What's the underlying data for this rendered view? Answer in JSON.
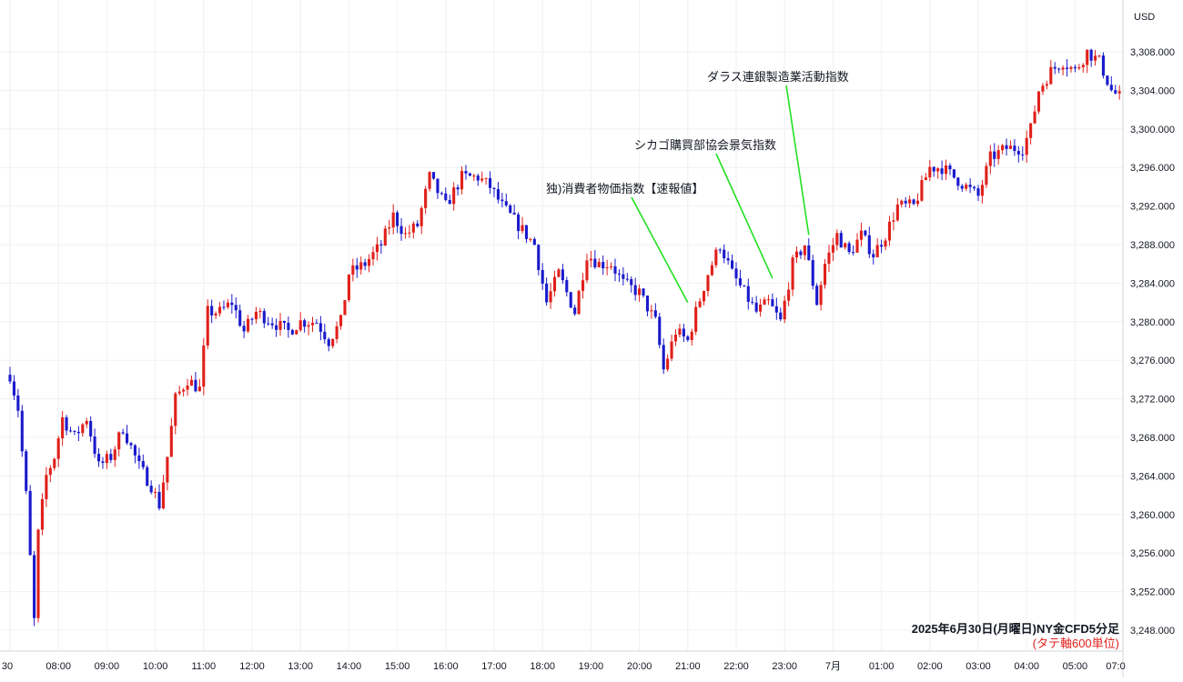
{
  "currency_label": "USD",
  "chart_data": {
    "type": "candlestick",
    "title": "",
    "xlabel": "",
    "ylabel": "",
    "ylim": [
      3246,
      3312
    ],
    "grid": true,
    "y_ticks": [
      3248,
      3252,
      3256,
      3260,
      3264,
      3268,
      3272,
      3276,
      3280,
      3284,
      3288,
      3292,
      3296,
      3300,
      3304,
      3308
    ],
    "y_tick_labels": [
      "3,248.000",
      "3,252.000",
      "3,256.000",
      "3,260.000",
      "3,264.000",
      "3,268.000",
      "3,272.000",
      "3,276.000",
      "3,280.000",
      "3,284.000",
      "3,288.000",
      "3,292.000",
      "3,296.000",
      "3,300.000",
      "3,304.000",
      "3,308.000"
    ],
    "x_tick_labels": [
      "30",
      "08:00",
      "09:00",
      "10:00",
      "11:00",
      "12:00",
      "13:00",
      "14:00",
      "15:00",
      "16:00",
      "17:00",
      "18:00",
      "19:00",
      "20:00",
      "21:00",
      "22:00",
      "23:00",
      "7月",
      "01:00",
      "02:00",
      "03:00",
      "04:00",
      "05:00",
      "07:0"
    ],
    "up_color": "#e0201b",
    "down_color": "#1a1acc",
    "bar_interval_minutes": 5,
    "close_path": [
      {
        "t": "07:00",
        "v": 3274.5
      },
      {
        "t": "07:10",
        "v": 3271
      },
      {
        "t": "07:20",
        "v": 3262
      },
      {
        "t": "07:30",
        "v": 3249
      },
      {
        "t": "07:35",
        "v": 3258
      },
      {
        "t": "07:45",
        "v": 3264
      },
      {
        "t": "07:55",
        "v": 3266
      },
      {
        "t": "08:05",
        "v": 3270
      },
      {
        "t": "08:20",
        "v": 3268
      },
      {
        "t": "08:35",
        "v": 3270
      },
      {
        "t": "08:50",
        "v": 3265
      },
      {
        "t": "09:05",
        "v": 3266
      },
      {
        "t": "09:20",
        "v": 3269
      },
      {
        "t": "09:40",
        "v": 3265
      },
      {
        "t": "09:55",
        "v": 3263
      },
      {
        "t": "10:05",
        "v": 3261
      },
      {
        "t": "10:15",
        "v": 3266
      },
      {
        "t": "10:25",
        "v": 3272
      },
      {
        "t": "10:40",
        "v": 3274
      },
      {
        "t": "10:55",
        "v": 3273
      },
      {
        "t": "11:05",
        "v": 3281
      },
      {
        "t": "11:20",
        "v": 3281
      },
      {
        "t": "11:35",
        "v": 3282
      },
      {
        "t": "11:50",
        "v": 3279
      },
      {
        "t": "12:05",
        "v": 3281
      },
      {
        "t": "12:25",
        "v": 3280
      },
      {
        "t": "12:45",
        "v": 3279
      },
      {
        "t": "13:00",
        "v": 3280
      },
      {
        "t": "13:20",
        "v": 3280
      },
      {
        "t": "13:35",
        "v": 3278
      },
      {
        "t": "13:50",
        "v": 3280
      },
      {
        "t": "14:00",
        "v": 3285
      },
      {
        "t": "14:20",
        "v": 3286
      },
      {
        "t": "14:40",
        "v": 3288
      },
      {
        "t": "14:55",
        "v": 3291
      },
      {
        "t": "15:10",
        "v": 3289
      },
      {
        "t": "15:25",
        "v": 3290
      },
      {
        "t": "15:40",
        "v": 3295
      },
      {
        "t": "16:00",
        "v": 3292
      },
      {
        "t": "16:20",
        "v": 3295
      },
      {
        "t": "16:40",
        "v": 3295
      },
      {
        "t": "16:55",
        "v": 3294
      },
      {
        "t": "17:10",
        "v": 3292
      },
      {
        "t": "17:30",
        "v": 3290
      },
      {
        "t": "17:50",
        "v": 3288
      },
      {
        "t": "18:05",
        "v": 3282
      },
      {
        "t": "18:20",
        "v": 3285
      },
      {
        "t": "18:40",
        "v": 3281
      },
      {
        "t": "18:55",
        "v": 3287
      },
      {
        "t": "19:10",
        "v": 3286
      },
      {
        "t": "19:25",
        "v": 3286
      },
      {
        "t": "19:40",
        "v": 3284
      },
      {
        "t": "20:00",
        "v": 3283
      },
      {
        "t": "20:20",
        "v": 3280
      },
      {
        "t": "20:30",
        "v": 3275
      },
      {
        "t": "20:45",
        "v": 3279
      },
      {
        "t": "21:00",
        "v": 3278
      },
      {
        "t": "21:10",
        "v": 3281
      },
      {
        "t": "21:25",
        "v": 3285
      },
      {
        "t": "21:40",
        "v": 3288
      },
      {
        "t": "21:55",
        "v": 3285
      },
      {
        "t": "22:10",
        "v": 3283
      },
      {
        "t": "22:25",
        "v": 3281
      },
      {
        "t": "22:40",
        "v": 3282
      },
      {
        "t": "22:55",
        "v": 3280
      },
      {
        "t": "23:10",
        "v": 3286
      },
      {
        "t": "23:25",
        "v": 3288
      },
      {
        "t": "23:40",
        "v": 3282
      },
      {
        "t": "23:50",
        "v": 3286
      },
      {
        "t": "00:05",
        "v": 3289
      },
      {
        "t": "00:20",
        "v": 3287
      },
      {
        "t": "00:35",
        "v": 3289
      },
      {
        "t": "00:50",
        "v": 3287
      },
      {
        "t": "01:05",
        "v": 3289
      },
      {
        "t": "01:20",
        "v": 3292
      },
      {
        "t": "01:40",
        "v": 3292
      },
      {
        "t": "02:00",
        "v": 3296
      },
      {
        "t": "02:15",
        "v": 3296
      },
      {
        "t": "02:30",
        "v": 3295
      },
      {
        "t": "02:45",
        "v": 3294
      },
      {
        "t": "03:00",
        "v": 3293
      },
      {
        "t": "03:15",
        "v": 3297
      },
      {
        "t": "03:35",
        "v": 3298
      },
      {
        "t": "03:55",
        "v": 3298
      },
      {
        "t": "04:05",
        "v": 3300
      },
      {
        "t": "04:15",
        "v": 3304
      },
      {
        "t": "04:30",
        "v": 3306
      },
      {
        "t": "04:45",
        "v": 3307
      },
      {
        "t": "05:00",
        "v": 3306
      },
      {
        "t": "05:15",
        "v": 3308
      },
      {
        "t": "05:30",
        "v": 3307
      },
      {
        "t": "05:45",
        "v": 3304
      },
      {
        "t": "06:00",
        "v": 3303
      },
      {
        "t": "06:05",
        "v": 3303
      }
    ],
    "price_range": {
      "low": 3246.5,
      "high": 3309.2
    },
    "annotations": [
      {
        "text": "独)消費者物価指数【速報値】",
        "time": "21:00",
        "price": 3282
      },
      {
        "text": "シカゴ購買部協会景気指数",
        "time": "22:45",
        "price": 3284.5
      },
      {
        "text": "ダラス連銀製造業活動指数",
        "time": "23:30",
        "price": 3289
      }
    ],
    "caption": "2025年6月30日(月曜日)NY金CFD5分足",
    "caption_sub": "(タテ軸600単位)"
  }
}
